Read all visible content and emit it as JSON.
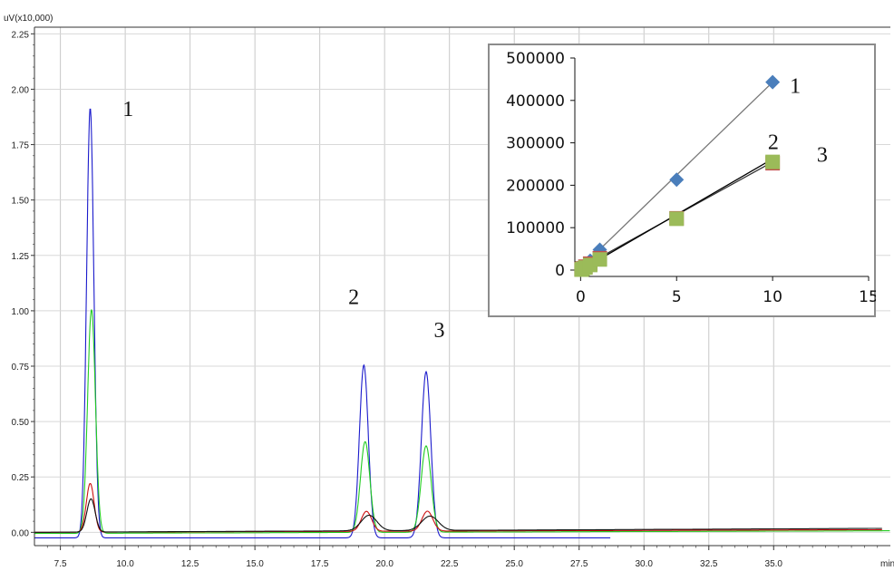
{
  "chart_data": [
    {
      "type": "line",
      "title": "",
      "y_unit": "uV(x10,000)",
      "x_unit": "min",
      "xlim": [
        6.5,
        39.5
      ],
      "ylim": [
        -0.06,
        2.28
      ],
      "x_ticks": [
        "7.5",
        "10.0",
        "12.5",
        "15.0",
        "17.5",
        "20.0",
        "22.5",
        "25.0",
        "27.5",
        "30.0",
        "32.5",
        "35.0"
      ],
      "y_ticks": [
        "0.00",
        "0.25",
        "0.50",
        "0.75",
        "1.00",
        "1.25",
        "1.50",
        "1.75",
        "2.00",
        "2.25"
      ],
      "grid": true,
      "series": [
        {
          "color": "#1a1acc",
          "baseline": -0.025,
          "drift": 0.0,
          "x_end": 28.7,
          "peaks": [
            {
              "x": 8.65,
              "height": 1.94,
              "width": 0.14
            },
            {
              "x": 19.2,
              "height": 0.78,
              "width": 0.17
            },
            {
              "x": 21.6,
              "height": 0.75,
              "width": 0.18
            }
          ]
        },
        {
          "color": "#22cc22",
          "baseline": -0.005,
          "drift": 0.012,
          "x_end": 39.5,
          "peaks": [
            {
              "x": 8.7,
              "height": 1.01,
              "width": 0.15
            },
            {
              "x": 19.25,
              "height": 0.41,
              "width": 0.18
            },
            {
              "x": 21.6,
              "height": 0.39,
              "width": 0.19
            }
          ]
        },
        {
          "color": "#cc1111",
          "baseline": 0.0,
          "drift": 0.012,
          "x_end": 39.2,
          "peaks": [
            {
              "x": 8.65,
              "height": 0.22,
              "width": 0.15
            },
            {
              "x": 19.3,
              "height": 0.09,
              "width": 0.2
            },
            {
              "x": 21.65,
              "height": 0.09,
              "width": 0.21
            }
          ]
        },
        {
          "color": "#111111",
          "baseline": 0.0,
          "drift": 0.018,
          "x_end": 39.2,
          "peaks": [
            {
              "x": 8.68,
              "height": 0.15,
              "width": 0.16
            },
            {
              "x": 19.4,
              "height": 0.07,
              "width": 0.3
            },
            {
              "x": 21.75,
              "height": 0.065,
              "width": 0.32
            }
          ]
        }
      ],
      "peak_labels": [
        {
          "text": "1",
          "x": 9.9,
          "y": 1.88
        },
        {
          "text": "2",
          "x": 18.6,
          "y": 1.03
        },
        {
          "text": "3",
          "x": 21.9,
          "y": 0.88
        }
      ]
    },
    {
      "type": "scatter",
      "title": "",
      "xlim": [
        -0.3,
        15
      ],
      "ylim": [
        -15000,
        500000
      ],
      "x_ticks": [
        "0",
        "5",
        "10",
        "15"
      ],
      "y_ticks": [
        "0",
        "100000",
        "200000",
        "300000",
        "400000",
        "500000"
      ],
      "grid": false,
      "series": [
        {
          "marker": "diamond",
          "color": "#4a7ebb",
          "line_color": "#777777",
          "x": [
            0.05,
            0.1,
            0.25,
            0.5,
            1,
            5,
            10
          ],
          "y": [
            3000,
            5000,
            11000,
            22000,
            48000,
            213000,
            443000
          ],
          "fit_x": [
            0,
            10
          ],
          "fit_y": [
            5000,
            443000
          ]
        },
        {
          "marker": "square",
          "color": "#c0504d",
          "line_color": "#333333",
          "x": [
            0.05,
            0.1,
            0.25,
            0.5,
            1,
            5,
            10
          ],
          "y": [
            2000,
            4000,
            8000,
            15000,
            28000,
            122000,
            252000
          ],
          "fit_x": [
            0,
            10
          ],
          "fit_y": [
            5000,
            255000
          ]
        },
        {
          "marker": "square",
          "color": "#9bbb59",
          "line_color": "#000000",
          "x": [
            0.05,
            0.1,
            0.25,
            0.5,
            1,
            5,
            10
          ],
          "y": [
            1000,
            3000,
            6000,
            12000,
            25000,
            121000,
            255000
          ],
          "fit_x": [
            0.2,
            10
          ],
          "fit_y": [
            5000,
            262000
          ]
        }
      ],
      "series_labels": [
        {
          "text": "1",
          "x": 10.9,
          "y": 418000
        },
        {
          "text": "2",
          "x": 9.75,
          "y": 285000
        },
        {
          "text": "3",
          "x": 12.3,
          "y": 255000
        }
      ]
    }
  ]
}
